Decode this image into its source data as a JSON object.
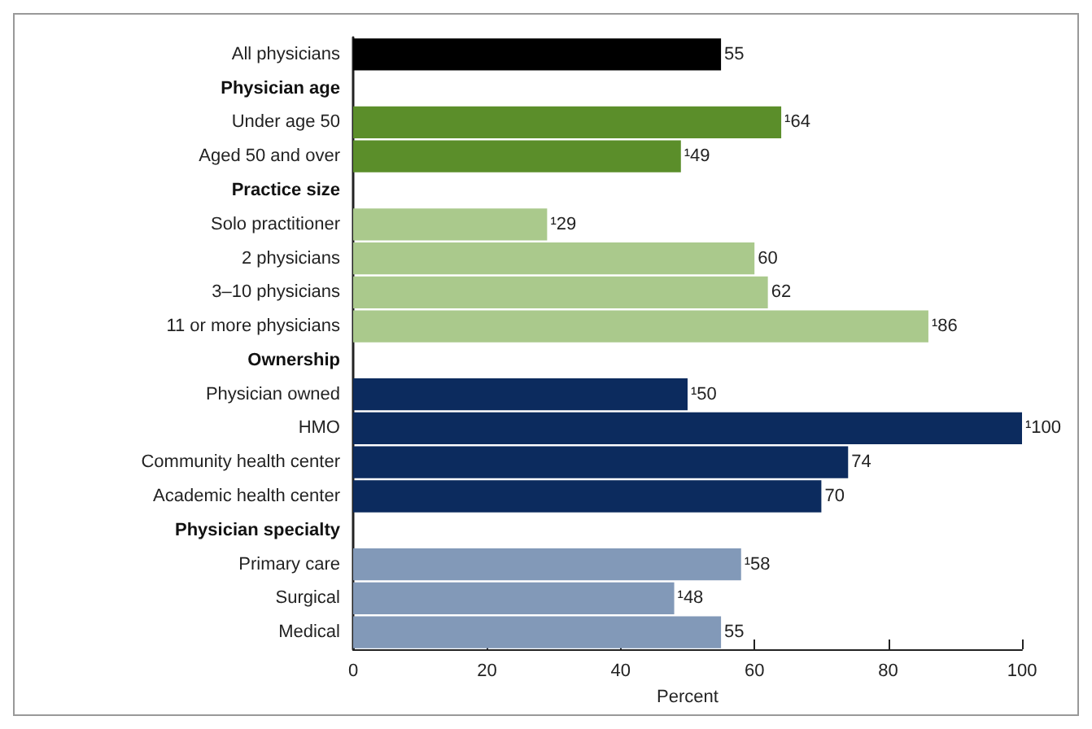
{
  "chart_data": {
    "type": "bar",
    "orientation": "horizontal",
    "xlabel": "Percent",
    "categories": [
      "All physicians",
      "Physician age",
      "Under age 50",
      "Aged 50 and over",
      "Practice size",
      "Solo practitioner",
      "2 physicians",
      "3–10 physicians",
      "11 or more physicians",
      "Ownership",
      "Physician owned",
      "HMO",
      "Community health center",
      "Academic health center",
      "Physician specialty",
      "Primary care",
      "Surgical",
      "Medical"
    ],
    "values": [
      55,
      null,
      64,
      49,
      null,
      29,
      60,
      62,
      86,
      null,
      50,
      100,
      74,
      70,
      null,
      58,
      48,
      55
    ],
    "colors": [
      "#000000",
      null,
      "#5b8e2a",
      "#5b8e2a",
      null,
      "#aac98c",
      "#aac98c",
      "#aac98c",
      "#aac98c",
      null,
      "#0c2b5e",
      "#0c2b5e",
      "#0c2b5e",
      "#0c2b5e",
      null,
      "#8299b8",
      "#8299b8",
      "#8299b8"
    ],
    "value_labels": [
      "55",
      null,
      "¹64",
      "¹49",
      null,
      "¹29",
      "60",
      "62",
      "¹86",
      null,
      "¹50",
      "¹100",
      "74",
      "70",
      null,
      "¹58",
      "¹48",
      "55"
    ],
    "xlim": [
      0,
      100
    ],
    "xticks": [
      0,
      20,
      40,
      60,
      80,
      100
    ]
  }
}
